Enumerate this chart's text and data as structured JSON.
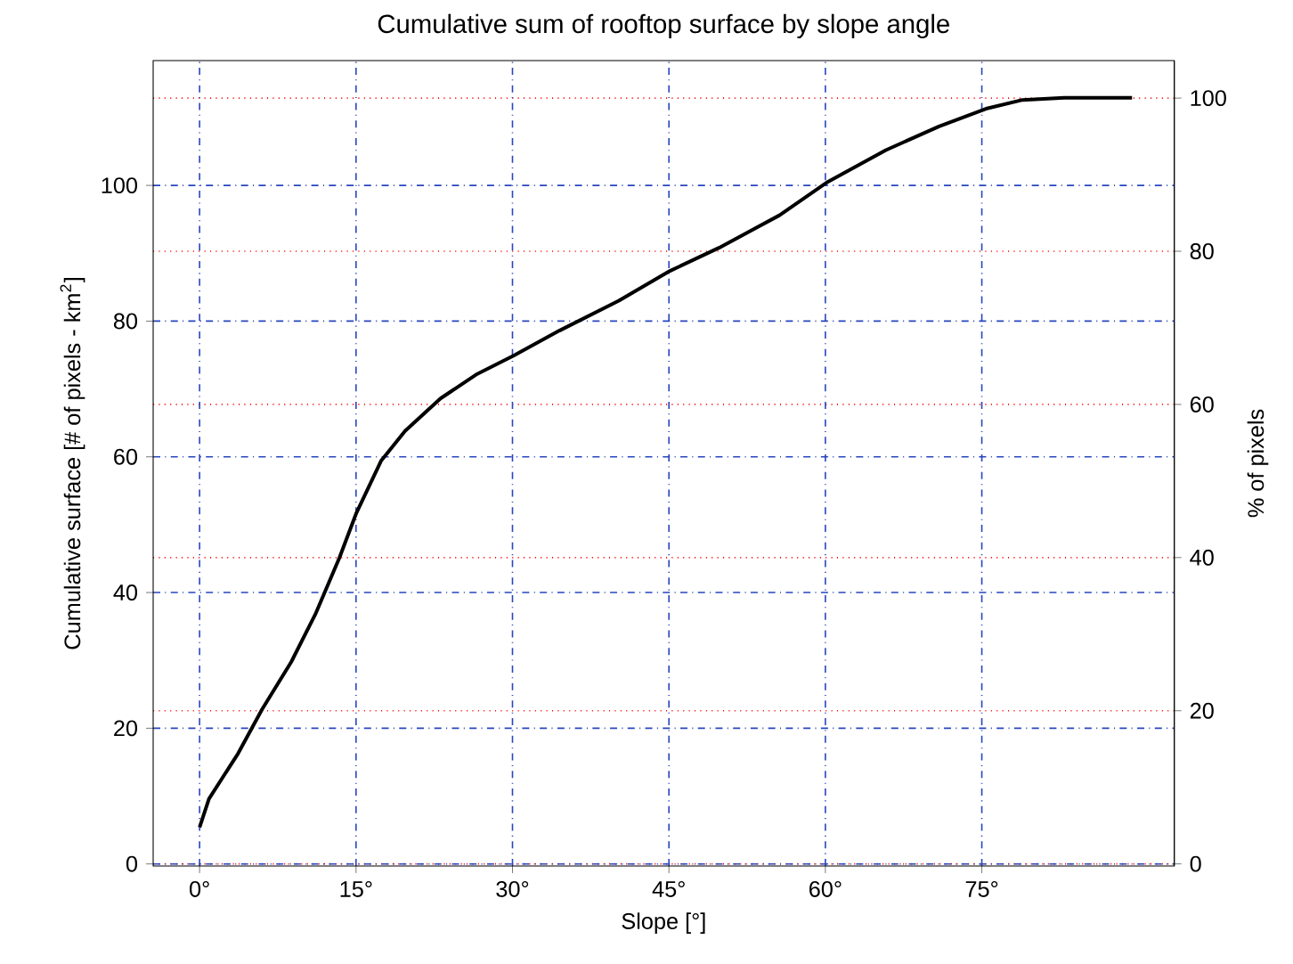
{
  "chart_data": {
    "type": "line",
    "title": "Cumulative sum of rooftop surface by slope angle",
    "xlabel": "Slope [°]",
    "ylabel": "Cumulative surface [# of pixels - km$^{2}$]",
    "y2label": "% of pixels",
    "x": [
      0,
      0.9,
      3.7,
      6.0,
      8.8,
      11.1,
      13.4,
      15.0,
      17.4,
      19.7,
      23.1,
      26.5,
      30.1,
      34.5,
      40.2,
      45.1,
      49.8,
      55.6,
      60.1,
      65.8,
      70.9,
      75.4,
      78.9,
      82.9,
      89.4
    ],
    "series": [
      {
        "color": "#000000",
        "values": [
          5.4,
          9.6,
          16.3,
          22.8,
          29.8,
          36.8,
          45.1,
          51.6,
          59.4,
          63.8,
          68.6,
          72.1,
          74.9,
          78.6,
          83.0,
          87.4,
          90.8,
          95.6,
          100.4,
          105.2,
          108.7,
          111.3,
          112.6,
          112.9,
          112.9
        ]
      }
    ],
    "xlim": [
      -4.45,
      93.45
    ],
    "ylim": [
      -0.3,
      118.4
    ],
    "y2lim": [
      -0.27,
      104.9
    ],
    "xticks": [
      {
        "value": 0,
        "label": "0°"
      },
      {
        "value": 15,
        "label": "15°"
      },
      {
        "value": 30,
        "label": "30°"
      },
      {
        "value": 45,
        "label": "45°"
      },
      {
        "value": 60,
        "label": "60°"
      },
      {
        "value": 75,
        "label": "75°"
      }
    ],
    "yticks": [
      0,
      20,
      40,
      60,
      80,
      100
    ],
    "y2ticks": [
      0,
      20,
      40,
      60,
      80,
      100
    ],
    "grid": true
  }
}
